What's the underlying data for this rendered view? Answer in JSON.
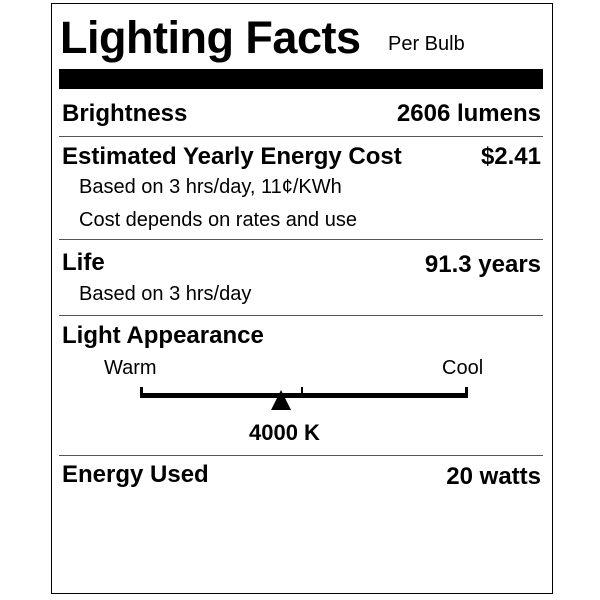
{
  "header": {
    "title": "Lighting Facts",
    "subtitle": "Per Bulb"
  },
  "brightness": {
    "label": "Brightness",
    "value": "2606 lumens"
  },
  "energy_cost": {
    "label": "Estimated Yearly Energy Cost",
    "value": "$2.41",
    "note1": "Based on 3 hrs/day, 11¢/KWh",
    "note2": "Cost depends on rates and use"
  },
  "life": {
    "label": "Life",
    "value": "91.3 years",
    "note": "Based on 3 hrs/day"
  },
  "appearance": {
    "label": "Light Appearance",
    "warm": "Warm",
    "cool": "Cool",
    "value": "4000 K",
    "marker_position_fraction": 0.43
  },
  "energy_used": {
    "label": "Energy Used",
    "value": "20 watts"
  }
}
